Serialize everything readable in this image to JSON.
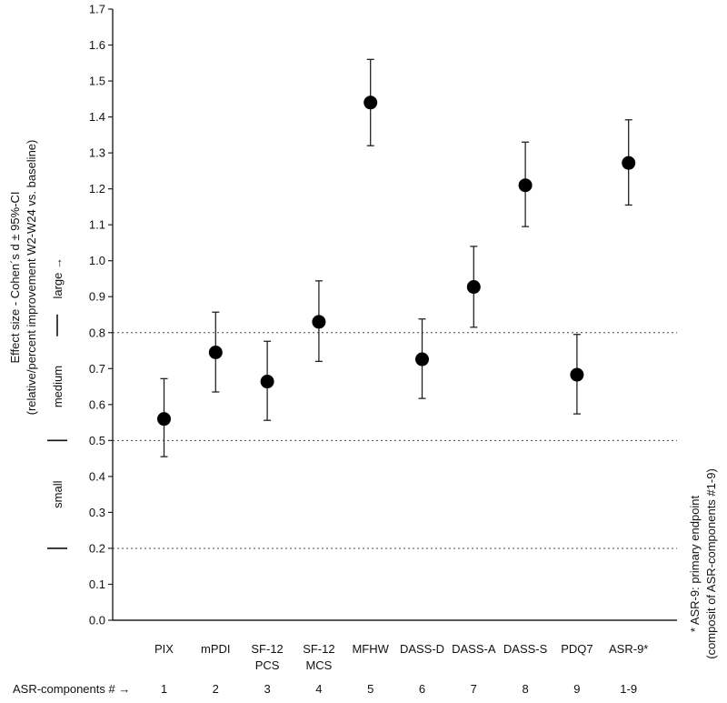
{
  "chart_data": {
    "type": "scatter",
    "title": "",
    "ylabel_line1": "Effect size - Cohen´s d ± 95%-CI",
    "ylabel_line2": "(relative/percent improvement W2-W24 vs. baseline)",
    "ylim": [
      0,
      1.7
    ],
    "yticks": [
      "0.0",
      "0.1",
      "0.2",
      "0.3",
      "0.4",
      "0.5",
      "0.6",
      "0.7",
      "0.8",
      "0.9",
      "1.0",
      "1.1",
      "1.2",
      "1.3",
      "1.4",
      "1.5",
      "1.6",
      "1.7"
    ],
    "categories": [
      {
        "lines": [
          "PIX"
        ],
        "component": "1",
        "value": 0.56,
        "ci_low": 0.455,
        "ci_high": 0.672
      },
      {
        "lines": [
          "mPDI"
        ],
        "component": "2",
        "value": 0.745,
        "ci_low": 0.635,
        "ci_high": 0.857
      },
      {
        "lines": [
          "SF-12",
          "PCS"
        ],
        "component": "3",
        "value": 0.664,
        "ci_low": 0.556,
        "ci_high": 0.776
      },
      {
        "lines": [
          "SF-12",
          "MCS"
        ],
        "component": "4",
        "value": 0.83,
        "ci_low": 0.72,
        "ci_high": 0.944
      },
      {
        "lines": [
          "MFHW"
        ],
        "component": "5",
        "value": 1.44,
        "ci_low": 1.32,
        "ci_high": 1.56
      },
      {
        "lines": [
          "DASS-D"
        ],
        "component": "6",
        "value": 0.726,
        "ci_low": 0.617,
        "ci_high": 0.838
      },
      {
        "lines": [
          "DASS-A"
        ],
        "component": "7",
        "value": 0.927,
        "ci_low": 0.815,
        "ci_high": 1.04
      },
      {
        "lines": [
          "DASS-S"
        ],
        "component": "8",
        "value": 1.21,
        "ci_low": 1.095,
        "ci_high": 1.33
      },
      {
        "lines": [
          "PDQ7"
        ],
        "component": "9",
        "value": 0.683,
        "ci_low": 0.574,
        "ci_high": 0.795
      },
      {
        "lines": [
          "ASR-9*"
        ],
        "component": "1-9",
        "value": 1.272,
        "ci_low": 1.155,
        "ci_high": 1.392
      }
    ],
    "reference_lines": [
      0.2,
      0.5,
      0.8
    ],
    "bands": [
      {
        "label": "small",
        "range": [
          0.2,
          0.5
        ]
      },
      {
        "label": "medium",
        "range": [
          0.5,
          0.8
        ]
      },
      {
        "label": "large →",
        "range": [
          0.8,
          1.0
        ]
      }
    ],
    "components_row_label": "ASR-components # →",
    "footnote_line1": "* ASR-9: primary endpoint",
    "footnote_line2": "(composit of ASR-components #1-9)"
  }
}
